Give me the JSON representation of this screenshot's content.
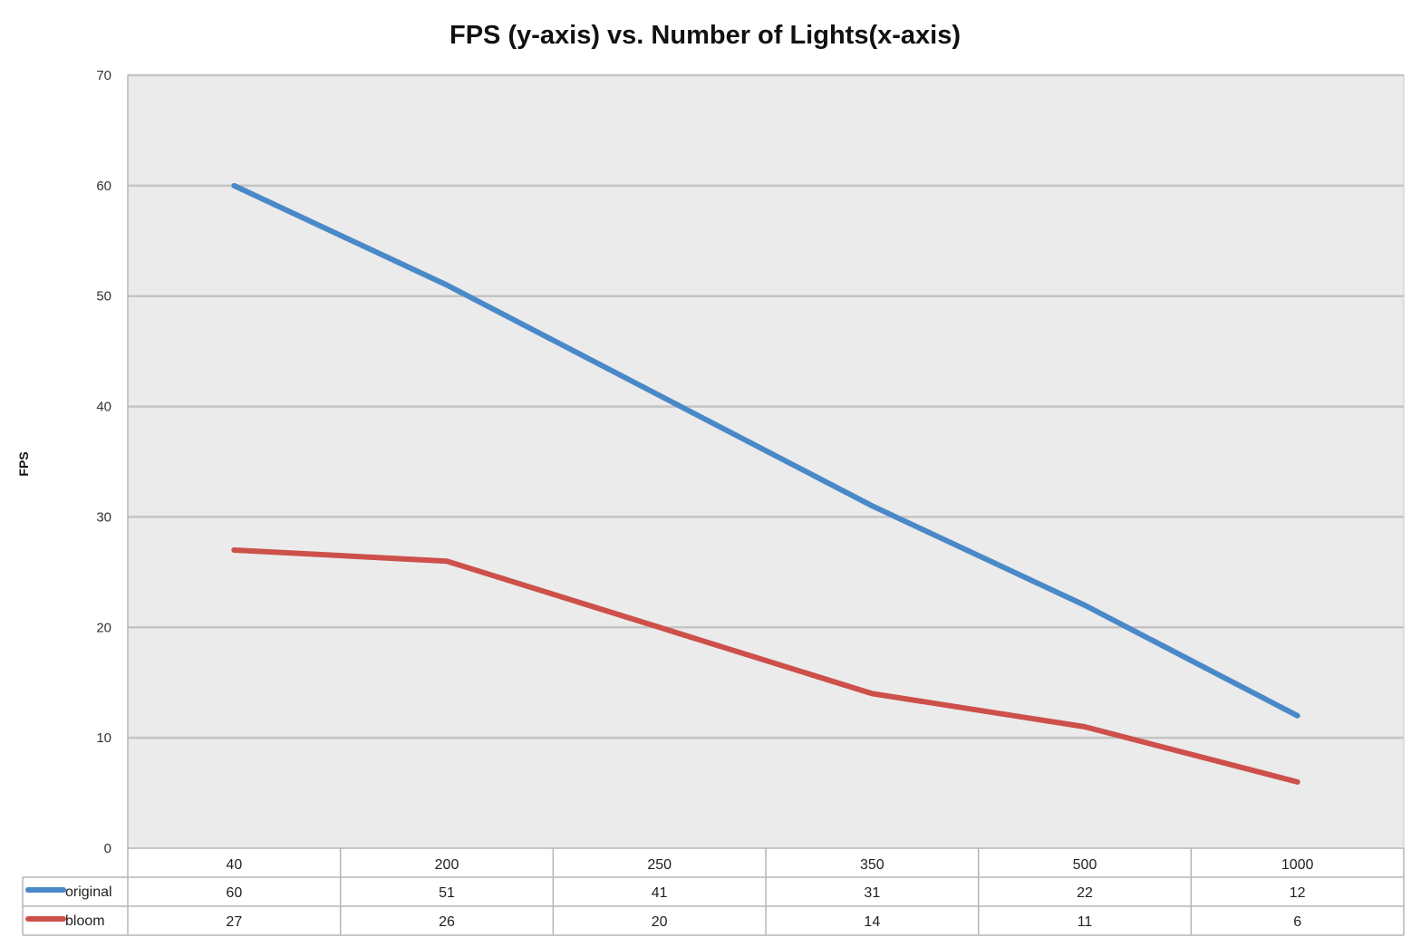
{
  "chart_data": {
    "type": "line",
    "title": "FPS (y-axis) vs. Number of Lights(x-axis)",
    "ylabel": "FPS",
    "xlabel": "",
    "categories": [
      "40",
      "200",
      "250",
      "350",
      "500",
      "1000"
    ],
    "ylim": [
      0,
      70
    ],
    "yticks": [
      0,
      10,
      20,
      30,
      40,
      50,
      60,
      70
    ],
    "grid": true,
    "legend": "data-table-below",
    "background_color": "#ebebeb",
    "series": [
      {
        "name": "original",
        "values": [
          60,
          51,
          41,
          31,
          22,
          12
        ],
        "color": "#4a89c8"
      },
      {
        "name": "bloom",
        "values": [
          27,
          26,
          20,
          14,
          11,
          6
        ],
        "color": "#cd504b"
      }
    ]
  }
}
